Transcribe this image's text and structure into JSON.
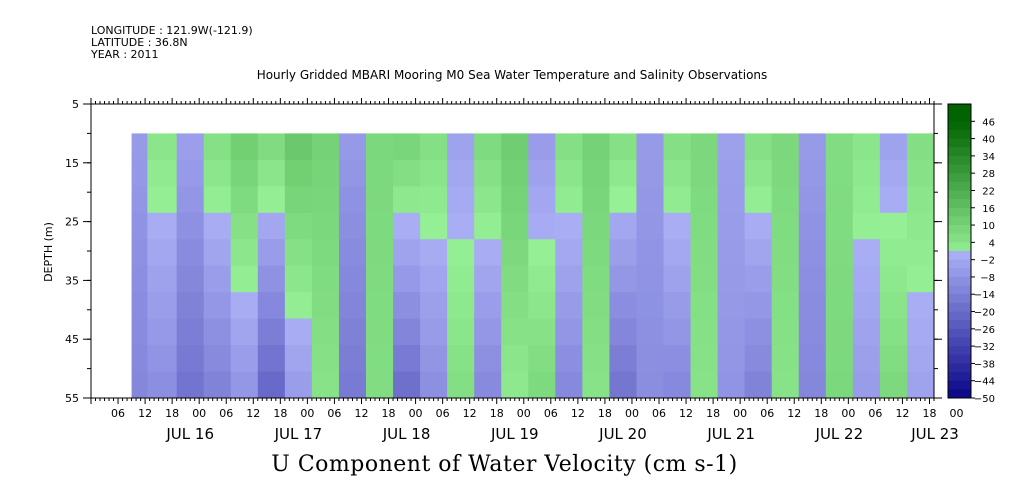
{
  "header": {
    "longitude": "LONGITUDE : 121.9W(-121.9)",
    "latitude": "LATITUDE : 36.8N",
    "year": "YEAR : 2011"
  },
  "chart_data": {
    "type": "heatmap",
    "title": "Hourly Gridded MBARI Mooring M0 Sea Water Temperature and Salinity Observations",
    "xlabel": "U Component of Water Velocity (cm s-1)",
    "ylabel": "DEPTH (m)",
    "y_ticks": [
      5,
      15,
      25,
      35,
      45,
      55
    ],
    "ylim": [
      5,
      55
    ],
    "y_data_top": 10,
    "x_start": "2011-07-15T00:00",
    "x_end": "2011-07-22T19:00",
    "data_start": "2011-07-15T09:00",
    "x_hour_ticks": [
      "06",
      "12",
      "18",
      "00",
      "06",
      "12",
      "18",
      "00",
      "06",
      "12",
      "18",
      "00",
      "06",
      "12",
      "18",
      "00",
      "06",
      "12",
      "18",
      "00",
      "06",
      "12",
      "18",
      "00",
      "06",
      "12",
      "18",
      "00",
      "06",
      "12",
      "18",
      "00"
    ],
    "x_day_labels": [
      "JUL 16",
      "JUL 17",
      "JUL 18",
      "JUL 19",
      "JUL 20",
      "JUL 21",
      "JUL 22",
      "JUL 23"
    ],
    "colorbar_levels": [
      46,
      40,
      34,
      28,
      22,
      16,
      10,
      4,
      -2,
      -8,
      -14,
      -20,
      -26,
      -32,
      -38,
      -44,
      -50
    ],
    "colorbar_range": [
      -50,
      52
    ],
    "daily_pattern_note": "",
    "columns": [
      {
        "t_hours": 9,
        "surface": -6,
        "bottom": -12
      },
      {
        "t_hours": 16,
        "surface": 4,
        "bottom": -10
      },
      {
        "t_hours": 22,
        "surface": -4,
        "bottom": -18
      },
      {
        "t_hours": 28,
        "surface": 6,
        "bottom": -14
      },
      {
        "t_hours": 34,
        "surface": 12,
        "bottom": -8
      },
      {
        "t_hours": 40,
        "surface": 8,
        "bottom": -22
      },
      {
        "t_hours": 46,
        "surface": 14,
        "bottom": -6
      },
      {
        "t_hours": 52,
        "surface": 10,
        "bottom": 4
      },
      {
        "t_hours": 58,
        "surface": -6,
        "bottom": -16
      },
      {
        "t_hours": 64,
        "surface": 8,
        "bottom": 6
      },
      {
        "t_hours": 70,
        "surface": 10,
        "bottom": -20
      },
      {
        "t_hours": 76,
        "surface": 6,
        "bottom": -10
      },
      {
        "t_hours": 82,
        "surface": -4,
        "bottom": 6
      },
      {
        "t_hours": 88,
        "surface": 8,
        "bottom": -12
      },
      {
        "t_hours": 94,
        "surface": 12,
        "bottom": 2
      },
      {
        "t_hours": 100,
        "surface": -6,
        "bottom": 8
      },
      {
        "t_hours": 106,
        "surface": 6,
        "bottom": -12
      },
      {
        "t_hours": 112,
        "surface": 10,
        "bottom": 4
      },
      {
        "t_hours": 118,
        "surface": 6,
        "bottom": -18
      },
      {
        "t_hours": 124,
        "surface": -6,
        "bottom": -10
      },
      {
        "t_hours": 130,
        "surface": 6,
        "bottom": -12
      },
      {
        "t_hours": 136,
        "surface": 8,
        "bottom": 4
      },
      {
        "t_hours": 142,
        "surface": -4,
        "bottom": -8
      },
      {
        "t_hours": 148,
        "surface": 6,
        "bottom": -14
      },
      {
        "t_hours": 154,
        "surface": 8,
        "bottom": 4
      },
      {
        "t_hours": 160,
        "surface": -6,
        "bottom": -12
      },
      {
        "t_hours": 166,
        "surface": 6,
        "bottom": 8
      },
      {
        "t_hours": 172,
        "surface": 4,
        "bottom": -6
      },
      {
        "t_hours": 178,
        "surface": -4,
        "bottom": 8
      },
      {
        "t_hours": 184,
        "surface": 6,
        "bottom": -4
      }
    ]
  }
}
